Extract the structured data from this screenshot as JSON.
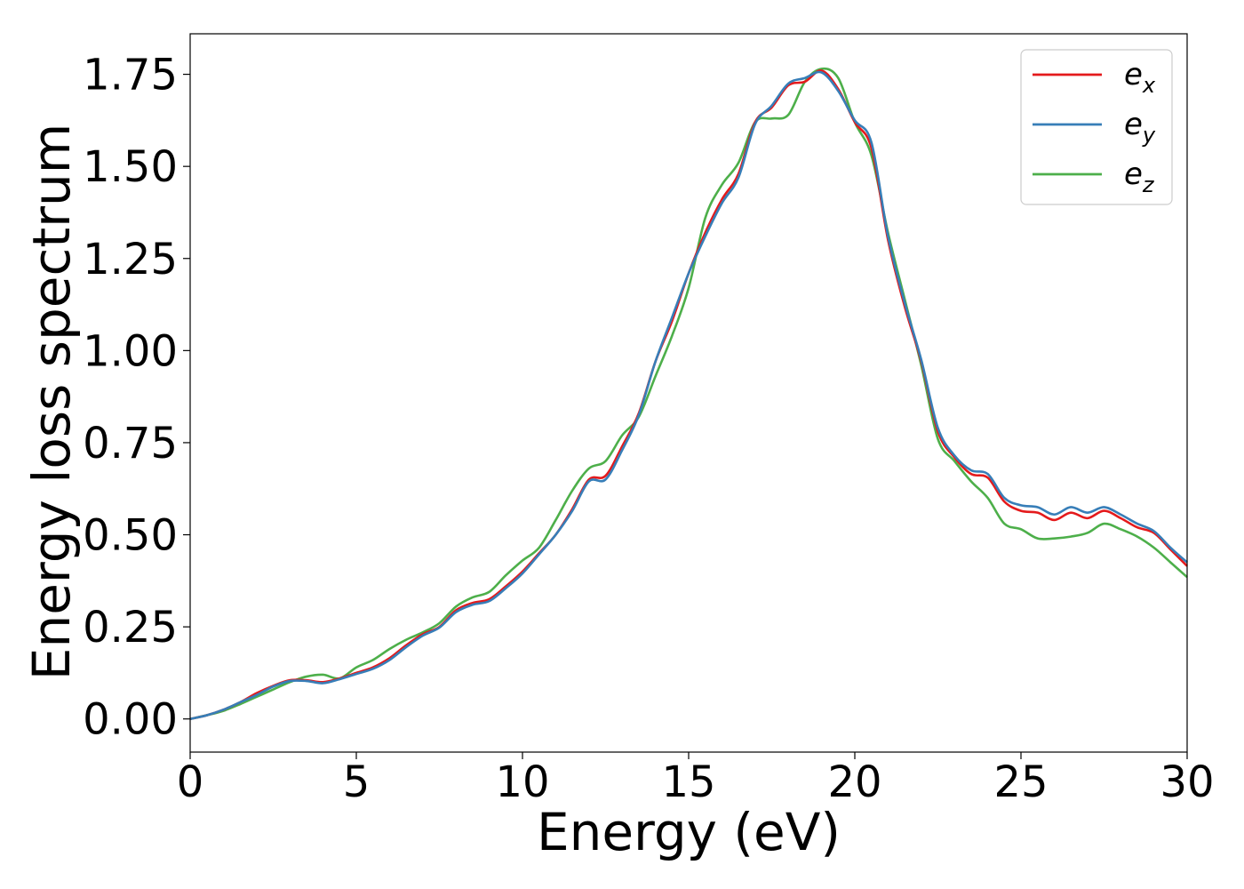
{
  "chart_data": {
    "type": "line",
    "title": "",
    "xlabel": "Energy (eV)",
    "ylabel": "Energy loss spectrum",
    "xlim": [
      0,
      30
    ],
    "ylim": [
      -0.09,
      1.86
    ],
    "xticks": [
      0,
      5,
      10,
      15,
      20,
      25,
      30
    ],
    "xtick_labels": [
      "0",
      "5",
      "10",
      "15",
      "20",
      "25",
      "30"
    ],
    "yticks": [
      0.0,
      0.25,
      0.5,
      0.75,
      1.0,
      1.25,
      1.5,
      1.75
    ],
    "ytick_labels": [
      "0.00",
      "0.25",
      "0.50",
      "0.75",
      "1.00",
      "1.25",
      "1.50",
      "1.75"
    ],
    "grid": false,
    "legend_position": "top-right",
    "series": [
      {
        "name": "e_x",
        "legend_main": "e",
        "legend_sub": "x",
        "color": "#e41a1c",
        "x": [
          0,
          0.5,
          1,
          1.5,
          2,
          2.5,
          3,
          3.5,
          4,
          4.5,
          5,
          5.5,
          6,
          6.5,
          7,
          7.5,
          8,
          8.5,
          9,
          9.5,
          10,
          10.5,
          11,
          11.5,
          12,
          12.5,
          13,
          13.5,
          14,
          14.5,
          15,
          15.5,
          16,
          16.5,
          17,
          17.5,
          18,
          18.5,
          19,
          19.5,
          20,
          20.5,
          21,
          21.5,
          22,
          22.5,
          23,
          23.5,
          24,
          24.5,
          25,
          25.5,
          26,
          26.5,
          27,
          27.5,
          28,
          28.5,
          29,
          29.5,
          30
        ],
        "y": [
          0.0,
          0.01,
          0.025,
          0.045,
          0.07,
          0.09,
          0.105,
          0.105,
          0.1,
          0.11,
          0.125,
          0.14,
          0.165,
          0.2,
          0.23,
          0.25,
          0.295,
          0.315,
          0.325,
          0.36,
          0.4,
          0.45,
          0.5,
          0.57,
          0.65,
          0.66,
          0.74,
          0.83,
          0.97,
          1.08,
          1.21,
          1.32,
          1.41,
          1.48,
          1.62,
          1.66,
          1.72,
          1.73,
          1.76,
          1.71,
          1.62,
          1.55,
          1.3,
          1.12,
          0.97,
          0.78,
          0.71,
          0.665,
          0.655,
          0.59,
          0.565,
          0.56,
          0.54,
          0.56,
          0.545,
          0.565,
          0.545,
          0.52,
          0.505,
          0.46,
          0.415
        ]
      },
      {
        "name": "e_y",
        "legend_main": "e",
        "legend_sub": "y",
        "color": "#377eb8",
        "x": [
          0,
          0.5,
          1,
          1.5,
          2,
          2.5,
          3,
          3.5,
          4,
          4.5,
          5,
          5.5,
          6,
          6.5,
          7,
          7.5,
          8,
          8.5,
          9,
          9.5,
          10,
          10.5,
          11,
          11.5,
          12,
          12.5,
          13,
          13.5,
          14,
          14.5,
          15,
          15.5,
          16,
          16.5,
          17,
          17.5,
          18,
          18.5,
          19,
          19.5,
          20,
          20.5,
          21,
          21.5,
          22,
          22.5,
          23,
          23.5,
          24,
          24.5,
          25,
          25.5,
          26,
          26.5,
          27,
          27.5,
          28,
          28.5,
          29,
          29.5,
          30
        ],
        "y": [
          0.0,
          0.01,
          0.025,
          0.045,
          0.065,
          0.088,
          0.103,
          0.103,
          0.097,
          0.108,
          0.122,
          0.136,
          0.16,
          0.195,
          0.226,
          0.248,
          0.29,
          0.31,
          0.32,
          0.355,
          0.395,
          0.447,
          0.5,
          0.565,
          0.645,
          0.65,
          0.73,
          0.825,
          0.97,
          1.09,
          1.21,
          1.31,
          1.4,
          1.47,
          1.615,
          1.665,
          1.725,
          1.74,
          1.755,
          1.705,
          1.625,
          1.565,
          1.31,
          1.13,
          0.975,
          0.79,
          0.715,
          0.675,
          0.665,
          0.6,
          0.58,
          0.575,
          0.555,
          0.575,
          0.56,
          0.575,
          0.555,
          0.53,
          0.51,
          0.465,
          0.425
        ]
      },
      {
        "name": "e_z",
        "legend_main": "e",
        "legend_sub": "z",
        "color": "#4daf4a",
        "x": [
          0,
          0.5,
          1,
          1.5,
          2,
          2.5,
          3,
          3.5,
          4,
          4.5,
          5,
          5.5,
          6,
          6.5,
          7,
          7.5,
          8,
          8.5,
          9,
          9.5,
          10,
          10.5,
          11,
          11.5,
          12,
          12.5,
          13,
          13.5,
          14,
          14.5,
          15,
          15.5,
          16,
          16.5,
          17,
          17.5,
          18,
          18.5,
          19,
          19.5,
          20,
          20.5,
          21,
          21.5,
          22,
          22.5,
          23,
          23.5,
          24,
          24.5,
          25,
          25.5,
          26,
          26.5,
          27,
          27.5,
          28,
          28.5,
          29,
          29.5,
          30
        ],
        "y": [
          0.0,
          0.01,
          0.022,
          0.04,
          0.06,
          0.08,
          0.1,
          0.115,
          0.12,
          0.11,
          0.14,
          0.16,
          0.19,
          0.215,
          0.235,
          0.26,
          0.305,
          0.33,
          0.345,
          0.39,
          0.43,
          0.465,
          0.54,
          0.62,
          0.68,
          0.7,
          0.77,
          0.82,
          0.93,
          1.04,
          1.17,
          1.36,
          1.45,
          1.51,
          1.62,
          1.63,
          1.64,
          1.73,
          1.765,
          1.74,
          1.62,
          1.53,
          1.32,
          1.14,
          0.96,
          0.76,
          0.7,
          0.645,
          0.6,
          0.53,
          0.515,
          0.49,
          0.49,
          0.495,
          0.505,
          0.53,
          0.515,
          0.495,
          0.465,
          0.425,
          0.385
        ]
      }
    ]
  }
}
